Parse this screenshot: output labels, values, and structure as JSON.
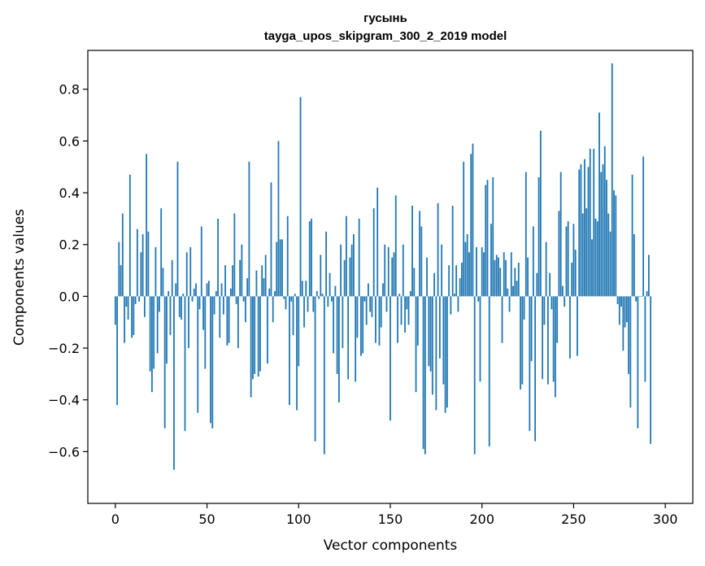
{
  "chart_data": {
    "type": "bar",
    "title": "гусынь",
    "subtitle": "tayga_upos_skipgram_300_2_2019 model",
    "xlabel": "Vector components",
    "ylabel": "Components values",
    "xlim": [
      -15,
      315
    ],
    "ylim": [
      -0.8,
      0.95
    ],
    "xticks": [
      0,
      50,
      100,
      150,
      200,
      250,
      300
    ],
    "xtick_labels": [
      "0",
      "50",
      "100",
      "150",
      "200",
      "250",
      "300"
    ],
    "yticks": [
      -0.6,
      -0.4,
      -0.2,
      0.0,
      0.2,
      0.4,
      0.6,
      0.8
    ],
    "ytick_labels": [
      "−0.6",
      "−0.4",
      "−0.2",
      "0.0",
      "0.2",
      "0.4",
      "0.6",
      "0.8"
    ],
    "grid": false,
    "bar_color": "#1f77b4",
    "values": [
      -0.11,
      -0.42,
      0.21,
      0.12,
      0.32,
      -0.18,
      -0.04,
      -0.09,
      0.47,
      -0.16,
      -0.15,
      -0.03,
      0.26,
      -0.02,
      0.17,
      0.24,
      -0.08,
      0.55,
      0.25,
      -0.29,
      -0.37,
      -0.28,
      0.19,
      -0.22,
      -0.06,
      0.34,
      0.11,
      -0.51,
      -0.26,
      0.02,
      -0.15,
      0.14,
      -0.67,
      0.05,
      0.52,
      -0.08,
      -0.09,
      0.01,
      -0.52,
      0.17,
      -0.2,
      0.19,
      -0.02,
      0.03,
      0.05,
      -0.45,
      -0.05,
      0.27,
      -0.13,
      -0.28,
      0.05,
      0.06,
      -0.49,
      -0.51,
      -0.07,
      0.02,
      0.3,
      -0.16,
      0.05,
      -0.07,
      0.12,
      -0.19,
      -0.18,
      0.03,
      0.12,
      0.32,
      -0.03,
      -0.2,
      0.14,
      0.2,
      -0.02,
      -0.1,
      0.07,
      0.52,
      -0.39,
      -0.32,
      -0.3,
      0.1,
      -0.31,
      -0.29,
      0.12,
      0.07,
      0.16,
      -0.26,
      0.03,
      0.44,
      -0.1,
      0.02,
      0.21,
      0.6,
      0.22,
      0.22,
      -0.01,
      -0.05,
      0.31,
      -0.42,
      -0.02,
      -0.15,
      0.01,
      -0.44,
      -0.27,
      0.77,
      0.06,
      -0.12,
      0.06,
      -0.06,
      0.29,
      0.3,
      -0.06,
      -0.56,
      0.02,
      -0.01,
      0.16,
      0.01,
      -0.61,
      0.25,
      -0.04,
      0.09,
      -0.02,
      -0.22,
      0.04,
      -0.3,
      -0.41,
      0.2,
      -0.2,
      0.14,
      0.31,
      -0.32,
      0.15,
      0.2,
      0.24,
      -0.33,
      -0.16,
      0.3,
      -0.23,
      -0.22,
      -0.02,
      -0.11,
      0.05,
      -0.06,
      -0.08,
      0.34,
      -0.18,
      0.42,
      -0.19,
      -0.12,
      0.05,
      0.2,
      -0.06,
      0.19,
      -0.48,
      0.15,
      0.17,
      0.39,
      -0.18,
      0.01,
      -0.11,
      0.2,
      -0.14,
      -0.05,
      -0.11,
      0.02,
      0.35,
      0.11,
      -0.37,
      -0.19,
      0.33,
      0.27,
      -0.59,
      -0.61,
      0.15,
      -0.27,
      -0.29,
      -0.38,
      0.09,
      -0.44,
      0.36,
      -0.24,
      0.2,
      -0.34,
      -0.45,
      -0.43,
      0.12,
      -0.07,
      0.35,
      0.01,
      0.12,
      -0.06,
      0.07,
      0.13,
      0.52,
      0.21,
      0.24,
      0.17,
      0.55,
      0.59,
      -0.61,
      0.19,
      -0.02,
      -0.33,
      0.19,
      0.17,
      0.43,
      0.45,
      -0.58,
      0.28,
      0.46,
      0.14,
      0.16,
      0.15,
      0.11,
      -0.18,
      0.17,
      0.14,
      0.03,
      -0.06,
      0.17,
      0.04,
      0.11,
      0.06,
      0.13,
      -0.36,
      -0.34,
      -0.09,
      0.48,
      0.15,
      -0.52,
      -0.25,
      0.27,
      -0.56,
      0.09,
      0.46,
      0.64,
      -0.32,
      -0.11,
      0.21,
      -0.34,
      0.09,
      -0.05,
      -0.33,
      -0.39,
      -0.18,
      0.33,
      0.48,
      0.04,
      -0.04,
      0.27,
      0.29,
      -0.24,
      0.13,
      0.28,
      0.18,
      -0.23,
      0.49,
      0.51,
      0.32,
      0.53,
      0.34,
      0.5,
      0.57,
      0.22,
      0.57,
      0.3,
      0.29,
      0.71,
      0.48,
      0.51,
      0.58,
      0.45,
      0.32,
      0.25,
      0.9,
      0.41,
      0.39,
      -0.03,
      -0.11,
      -0.04,
      -0.21,
      -0.12,
      -0.1,
      -0.3,
      -0.43,
      0.47,
      0.24,
      -0.02,
      -0.51,
      0.0,
      0.0,
      0.54,
      -0.33,
      0.02,
      0.16,
      -0.57
    ]
  }
}
